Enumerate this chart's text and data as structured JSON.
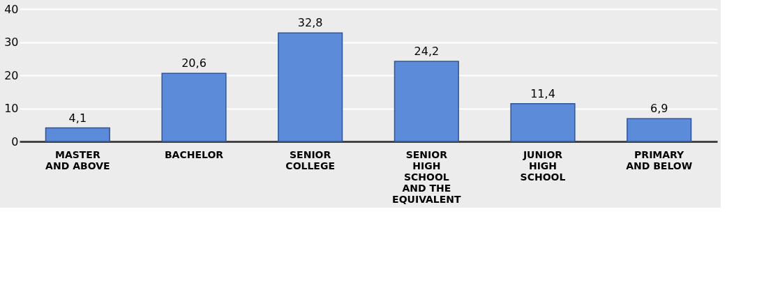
{
  "chart_data": {
    "type": "bar",
    "categories": [
      "MASTER AND ABOVE",
      "BACHELOR",
      "SENIOR COLLEGE",
      "SENIOR HIGH SCHOOL AND THE EQUIVALENT",
      "JUNIOR HIGH SCHOOL",
      "PRIMARY AND BELOW"
    ],
    "values": [
      4.1,
      20.6,
      32.8,
      24.2,
      11.4,
      6.9
    ],
    "value_labels": [
      "4,1",
      "20,6",
      "32,8",
      "24,2",
      "11,4",
      "6,9"
    ],
    "color": "#5b8bd9",
    "ylim": [
      0,
      40
    ],
    "yticks": [
      0,
      10,
      20,
      30,
      40
    ],
    "grid": "y"
  }
}
